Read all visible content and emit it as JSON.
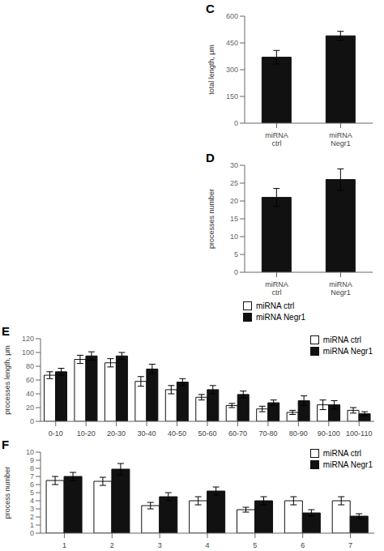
{
  "chart_data": [
    {
      "type": "bar",
      "title": "C",
      "categories": [
        "miRNA\nctrl",
        "miRNA\nNegr1"
      ],
      "series": [
        {
          "color": "#111111",
          "values": [
            370,
            490
          ],
          "errors": [
            38,
            25
          ]
        }
      ],
      "ylabel": "total length, μm",
      "ylim": [
        0,
        600
      ],
      "yticks": [
        0,
        150,
        300,
        450,
        600
      ],
      "grid": false
    },
    {
      "type": "bar",
      "title": "D",
      "categories": [
        "miRNA\nctrl",
        "miRNA\nNegr1"
      ],
      "series": [
        {
          "color": "#111111",
          "values": [
            21,
            26
          ],
          "errors": [
            2.5,
            3.0
          ]
        }
      ],
      "ylabel": "processes number",
      "ylim": [
        0,
        30
      ],
      "yticks": [
        0,
        5,
        10,
        15,
        20,
        25,
        30
      ],
      "grid": false
    },
    {
      "type": "bar",
      "title": "E",
      "categories": [
        "0-10",
        "10-20",
        "20-30",
        "30-40",
        "40-50",
        "50-60",
        "60-70",
        "70-80",
        "80-90",
        "90-100",
        "100-110"
      ],
      "series": [
        {
          "name": "miRNA ctrl",
          "color": "white",
          "values": [
            67,
            90,
            85,
            58,
            46,
            35,
            23,
            18,
            13,
            24,
            16
          ],
          "errors": [
            5,
            6,
            6,
            7,
            6,
            4,
            3,
            4,
            3,
            7,
            4
          ]
        },
        {
          "name": "miRNA Negr1",
          "color": "#111111",
          "values": [
            72,
            95,
            95,
            76,
            57,
            46,
            39,
            27,
            30,
            24,
            11
          ],
          "errors": [
            5,
            6,
            5,
            7,
            5,
            6,
            5,
            4,
            7,
            6,
            3
          ]
        }
      ],
      "ylabel": "processes length, μm",
      "ylim": [
        0,
        120
      ],
      "yticks": [
        0,
        20,
        40,
        60,
        80,
        100,
        120
      ],
      "grid": false,
      "legend": "upper right"
    },
    {
      "type": "bar",
      "title": "F",
      "categories": [
        "1",
        "2",
        "3",
        "4",
        "5",
        "6",
        "7"
      ],
      "series": [
        {
          "name": "miRNA ctrl",
          "color": "white",
          "values": [
            6.5,
            6.4,
            3.4,
            4.0,
            2.9,
            4.0,
            4.0
          ],
          "errors": [
            0.5,
            0.5,
            0.4,
            0.5,
            0.3,
            0.5,
            0.5
          ]
        },
        {
          "name": "miRNA Negr1",
          "color": "#111111",
          "values": [
            7.0,
            7.9,
            4.5,
            5.2,
            4.0,
            2.5,
            2.1
          ],
          "errors": [
            0.5,
            0.7,
            0.5,
            0.5,
            0.5,
            0.4,
            0.3
          ]
        }
      ],
      "ylabel": "process number",
      "ylim": [
        0,
        10
      ],
      "yticks": [
        0,
        1,
        2,
        3,
        4,
        5,
        6,
        7,
        8,
        9,
        10
      ],
      "grid": false,
      "legend": "upper right"
    }
  ],
  "legend": [
    {
      "name": "miRNA ctrl",
      "color": "white"
    },
    {
      "name": "miRNA Negr1",
      "color": "#111111"
    }
  ]
}
